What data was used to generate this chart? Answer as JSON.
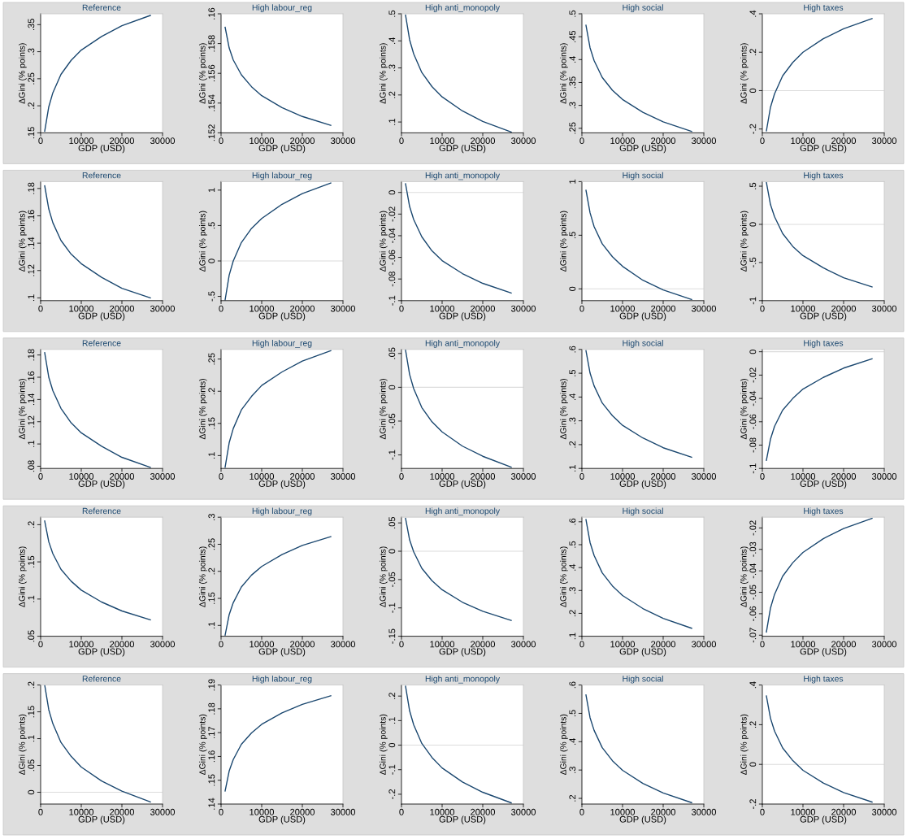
{
  "chart_data": [
    {
      "type": "line",
      "title": "Reference",
      "xlabel": "GDP (USD)",
      "ylabel": "ΔGini (% points)",
      "x": [
        1000,
        2000,
        3000,
        5000,
        7500,
        10000,
        15000,
        20000,
        27000
      ],
      "series": [
        {
          "color": "#1a476f",
          "values": [
            0.153,
            0.198,
            0.224,
            0.258,
            0.284,
            0.303,
            0.328,
            0.348,
            0.367
          ]
        }
      ],
      "xlim": [
        0,
        30000
      ],
      "xticks": [
        0,
        10000,
        20000,
        30000
      ],
      "ylim": [
        0.15,
        0.37
      ],
      "yticks": [
        {
          "value": 0.15,
          "label": ".15"
        },
        {
          "value": 0.2,
          "label": ".2"
        },
        {
          "value": 0.25,
          "label": ".25"
        },
        {
          "value": 0.3,
          "label": ".3"
        },
        {
          "value": 0.35,
          "label": ".35"
        }
      ]
    },
    {
      "type": "line",
      "title": "High labour_reg",
      "xlabel": "GDP (USD)",
      "ylabel": "ΔGini (% points)",
      "x": [
        1000,
        2000,
        3000,
        5000,
        7500,
        10000,
        15000,
        20000,
        27000
      ],
      "series": [
        {
          "color": "#1a476f",
          "values": [
            0.1591,
            0.1577,
            0.1569,
            0.1559,
            0.1551,
            0.1545,
            0.1537,
            0.1531,
            0.1525
          ]
        }
      ],
      "xlim": [
        0,
        30000
      ],
      "xticks": [
        0,
        10000,
        20000,
        30000
      ],
      "ylim": [
        0.152,
        0.16
      ],
      "yticks": [
        {
          "value": 0.152,
          "label": ".152"
        },
        {
          "value": 0.154,
          "label": ".154"
        },
        {
          "value": 0.156,
          "label": ".156"
        },
        {
          "value": 0.158,
          "label": ".158"
        },
        {
          "value": 0.16,
          "label": ".16"
        }
      ]
    },
    {
      "type": "line",
      "title": "High anti_monopoly",
      "xlabel": "GDP (USD)",
      "ylabel": "ΔGini (% points)",
      "x": [
        1000,
        2000,
        3000,
        5000,
        7500,
        10000,
        15000,
        20000,
        27000
      ],
      "series": [
        {
          "color": "#1a476f",
          "values": [
            0.495,
            0.404,
            0.352,
            0.283,
            0.231,
            0.193,
            0.141,
            0.102,
            0.063
          ]
        }
      ],
      "xlim": [
        0,
        30000
      ],
      "xticks": [
        0,
        10000,
        20000,
        30000
      ],
      "ylim": [
        0.06,
        0.5
      ],
      "yticks": [
        {
          "value": 0.1,
          "label": ".1"
        },
        {
          "value": 0.2,
          "label": ".2"
        },
        {
          "value": 0.3,
          "label": ".3"
        },
        {
          "value": 0.4,
          "label": ".4"
        },
        {
          "value": 0.5,
          "label": ".5"
        }
      ]
    },
    {
      "type": "line",
      "title": "High social",
      "xlabel": "GDP (USD)",
      "ylabel": "ΔGini (% points)",
      "x": [
        1000,
        2000,
        3000,
        5000,
        7500,
        10000,
        15000,
        20000,
        27000
      ],
      "series": [
        {
          "color": "#1a476f",
          "values": [
            0.475,
            0.426,
            0.398,
            0.361,
            0.333,
            0.313,
            0.285,
            0.264,
            0.243
          ]
        }
      ],
      "xlim": [
        0,
        30000
      ],
      "xticks": [
        0,
        10000,
        20000,
        30000
      ],
      "ylim": [
        0.24,
        0.5
      ],
      "yticks": [
        {
          "value": 0.25,
          "label": ".25"
        },
        {
          "value": 0.3,
          "label": ".3"
        },
        {
          "value": 0.35,
          "label": ".35"
        },
        {
          "value": 0.4,
          "label": ".4"
        },
        {
          "value": 0.45,
          "label": ".45"
        },
        {
          "value": 0.5,
          "label": ".5"
        }
      ]
    },
    {
      "type": "line",
      "title": "High taxes",
      "xlabel": "GDP (USD)",
      "ylabel": "ΔGini (% points)",
      "x": [
        1000,
        2000,
        3000,
        5000,
        7500,
        10000,
        15000,
        20000,
        27000
      ],
      "series": [
        {
          "color": "#1a476f",
          "values": [
            -0.21,
            -0.087,
            -0.017,
            0.077,
            0.147,
            0.2,
            0.27,
            0.322,
            0.375
          ]
        }
      ],
      "xlim": [
        0,
        30000
      ],
      "xticks": [
        0,
        10000,
        20000,
        30000
      ],
      "ylim": [
        -0.22,
        0.4
      ],
      "yticks": [
        {
          "value": -0.2,
          "label": "-.2"
        },
        0,
        {
          "value": 0.2,
          "label": ".2"
        },
        {
          "value": 0.4,
          "label": ".4"
        }
      ],
      "ref_lines": [
        {
          "axis": "y",
          "value": 0,
          "color": "#dcdcdc"
        }
      ]
    },
    {
      "type": "line",
      "title": "Reference",
      "xlabel": "GDP (USD)",
      "ylabel": "ΔGini (% points)",
      "x": [
        1000,
        2000,
        3000,
        5000,
        7500,
        10000,
        15000,
        20000,
        27000
      ],
      "series": [
        {
          "color": "#1a476f",
          "values": [
            0.182,
            0.165,
            0.155,
            0.142,
            0.132,
            0.125,
            0.115,
            0.107,
            0.1
          ]
        }
      ],
      "xlim": [
        0,
        30000
      ],
      "xticks": [
        0,
        10000,
        20000,
        30000
      ],
      "ylim": [
        0.098,
        0.185
      ],
      "yticks": [
        {
          "value": 0.1,
          "label": ".1"
        },
        {
          "value": 0.12,
          "label": ".12"
        },
        {
          "value": 0.14,
          "label": ".14"
        },
        {
          "value": 0.16,
          "label": ".16"
        },
        {
          "value": 0.18,
          "label": ".18"
        }
      ]
    },
    {
      "type": "line",
      "title": "High labour_reg",
      "xlabel": "GDP (USD)",
      "ylabel": "ΔGini (% points)",
      "x": [
        1000,
        2000,
        3000,
        5000,
        7500,
        10000,
        15000,
        20000,
        27000
      ],
      "series": [
        {
          "color": "#1a476f",
          "values": [
            -0.55,
            -0.2,
            0.0,
            0.26,
            0.46,
            0.6,
            0.8,
            0.95,
            1.1
          ]
        }
      ],
      "xlim": [
        0,
        30000
      ],
      "xticks": [
        0,
        10000,
        20000,
        30000
      ],
      "ylim": [
        -0.56,
        1.12
      ],
      "yticks": [
        {
          "value": -0.5,
          "label": "-.5"
        },
        0,
        {
          "value": 0.5,
          "label": ".5"
        },
        1
      ],
      "ref_lines": [
        {
          "axis": "y",
          "value": 0,
          "color": "#dcdcdc"
        }
      ]
    },
    {
      "type": "line",
      "title": "High anti_monopoly",
      "xlabel": "GDP (USD)",
      "ylabel": "ΔGini (% points)",
      "x": [
        1000,
        2000,
        3000,
        5000,
        7500,
        10000,
        15000,
        20000,
        27000
      ],
      "series": [
        {
          "color": "#1a476f",
          "values": [
            0.008,
            -0.013,
            -0.025,
            -0.041,
            -0.054,
            -0.063,
            -0.075,
            -0.084,
            -0.093
          ]
        }
      ],
      "xlim": [
        0,
        30000
      ],
      "xticks": [
        0,
        10000,
        20000,
        30000
      ],
      "ylim": [
        -0.1,
        0.01
      ],
      "yticks": [
        {
          "value": -0.1,
          "label": "-.1"
        },
        {
          "value": -0.08,
          "label": "-.08"
        },
        {
          "value": -0.06,
          "label": "-.06"
        },
        {
          "value": -0.04,
          "label": "-.04"
        },
        {
          "value": -0.02,
          "label": "-.02"
        },
        0
      ],
      "ref_lines": [
        {
          "axis": "y",
          "value": 0,
          "color": "#dcdcdc"
        }
      ]
    },
    {
      "type": "line",
      "title": "High social",
      "xlabel": "GDP (USD)",
      "ylabel": "ΔGini (% points)",
      "x": [
        1000,
        2000,
        3000,
        5000,
        7500,
        10000,
        15000,
        20000,
        27000
      ],
      "series": [
        {
          "color": "#1a476f",
          "values": [
            0.92,
            0.71,
            0.58,
            0.42,
            0.3,
            0.21,
            0.08,
            -0.01,
            -0.1
          ]
        }
      ],
      "xlim": [
        0,
        30000
      ],
      "xticks": [
        0,
        10000,
        20000,
        30000
      ],
      "ylim": [
        -0.11,
        1.0
      ],
      "yticks": [
        0,
        {
          "value": 0.5,
          "label": ".5"
        },
        1
      ],
      "ref_lines": [
        {
          "axis": "y",
          "value": 0,
          "color": "#dcdcdc"
        }
      ]
    },
    {
      "type": "line",
      "title": "High taxes",
      "xlabel": "GDP (USD)",
      "ylabel": "ΔGini (% points)",
      "x": [
        1000,
        2000,
        3000,
        5000,
        7500,
        10000,
        15000,
        20000,
        27000
      ],
      "series": [
        {
          "color": "#1a476f",
          "values": [
            0.55,
            0.26,
            0.1,
            -0.12,
            -0.29,
            -0.41,
            -0.57,
            -0.7,
            -0.82
          ]
        }
      ],
      "xlim": [
        0,
        30000
      ],
      "xticks": [
        0,
        10000,
        20000,
        30000
      ],
      "ylim": [
        -1.0,
        0.56
      ],
      "yticks": [
        -1,
        {
          "value": -0.5,
          "label": "-.5"
        },
        0,
        {
          "value": 0.5,
          "label": ".5"
        }
      ],
      "ref_lines": [
        {
          "axis": "y",
          "value": 0,
          "color": "#dcdcdc"
        }
      ]
    },
    {
      "type": "line",
      "title": "Reference",
      "xlabel": "GDP (USD)",
      "ylabel": "ΔGini (% points)",
      "x": [
        1000,
        2000,
        3000,
        5000,
        7500,
        10000,
        15000,
        20000,
        27000
      ],
      "series": [
        {
          "color": "#1a476f",
          "values": [
            0.182,
            0.16,
            0.148,
            0.132,
            0.119,
            0.11,
            0.098,
            0.088,
            0.079
          ]
        }
      ],
      "xlim": [
        0,
        30000
      ],
      "xticks": [
        0,
        10000,
        20000,
        30000
      ],
      "ylim": [
        0.078,
        0.185
      ],
      "yticks": [
        {
          "value": 0.08,
          "label": ".08"
        },
        {
          "value": 0.1,
          "label": ".1"
        },
        {
          "value": 0.12,
          "label": ".12"
        },
        {
          "value": 0.14,
          "label": ".14"
        },
        {
          "value": 0.16,
          "label": ".16"
        },
        {
          "value": 0.18,
          "label": ".18"
        }
      ]
    },
    {
      "type": "line",
      "title": "High labour_reg",
      "xlabel": "GDP (USD)",
      "ylabel": "ΔGini (% points)",
      "x": [
        1000,
        2000,
        3000,
        5000,
        7500,
        10000,
        15000,
        20000,
        27000
      ],
      "series": [
        {
          "color": "#1a476f",
          "values": [
            0.082,
            0.12,
            0.142,
            0.171,
            0.192,
            0.209,
            0.23,
            0.247,
            0.263
          ]
        }
      ],
      "xlim": [
        0,
        30000
      ],
      "xticks": [
        0,
        10000,
        20000,
        30000
      ],
      "ylim": [
        0.08,
        0.265
      ],
      "yticks": [
        {
          "value": 0.1,
          "label": ".1"
        },
        {
          "value": 0.15,
          "label": ".15"
        },
        {
          "value": 0.2,
          "label": ".2"
        },
        {
          "value": 0.25,
          "label": ".25"
        }
      ]
    },
    {
      "type": "line",
      "title": "High anti_monopoly",
      "xlabel": "GDP (USD)",
      "ylabel": "ΔGini (% points)",
      "x": [
        1000,
        2000,
        3000,
        5000,
        7500,
        10000,
        15000,
        20000,
        27000
      ],
      "series": [
        {
          "color": "#1a476f",
          "values": [
            0.055,
            0.019,
            -0.002,
            -0.03,
            -0.051,
            -0.066,
            -0.087,
            -0.102,
            -0.118
          ]
        }
      ],
      "xlim": [
        0,
        30000
      ],
      "xticks": [
        0,
        10000,
        20000,
        30000
      ],
      "ylim": [
        -0.12,
        0.056
      ],
      "yticks": [
        {
          "value": -0.1,
          "label": "-.1"
        },
        {
          "value": -0.05,
          "label": "-.05"
        },
        0,
        {
          "value": 0.05,
          "label": ".05"
        }
      ],
      "ref_lines": [
        {
          "axis": "y",
          "value": 0,
          "color": "#dcdcdc"
        }
      ]
    },
    {
      "type": "line",
      "title": "High social",
      "xlabel": "GDP (USD)",
      "ylabel": "ΔGini (% points)",
      "x": [
        1000,
        2000,
        3000,
        5000,
        7500,
        10000,
        15000,
        20000,
        27000
      ],
      "series": [
        {
          "color": "#1a476f",
          "values": [
            0.595,
            0.501,
            0.447,
            0.375,
            0.322,
            0.281,
            0.228,
            0.187,
            0.147
          ]
        }
      ],
      "xlim": [
        0,
        30000
      ],
      "xticks": [
        0,
        10000,
        20000,
        30000
      ],
      "ylim": [
        0.1,
        0.6
      ],
      "yticks": [
        {
          "value": 0.1,
          "label": ".1"
        },
        {
          "value": 0.2,
          "label": ".2"
        },
        {
          "value": 0.3,
          "label": ".3"
        },
        {
          "value": 0.4,
          "label": ".4"
        },
        {
          "value": 0.5,
          "label": ".5"
        },
        {
          "value": 0.6,
          "label": ".6"
        }
      ]
    },
    {
      "type": "line",
      "title": "High taxes",
      "xlabel": "GDP (USD)",
      "ylabel": "ΔGini (% points)",
      "x": [
        1000,
        2000,
        3000,
        5000,
        7500,
        10000,
        15000,
        20000,
        27000
      ],
      "series": [
        {
          "color": "#1a476f",
          "values": [
            -0.093,
            -0.075,
            -0.064,
            -0.05,
            -0.04,
            -0.032,
            -0.022,
            -0.014,
            -0.006
          ]
        }
      ],
      "xlim": [
        0,
        30000
      ],
      "xticks": [
        0,
        10000,
        20000,
        30000
      ],
      "ylim": [
        -0.1,
        0.002
      ],
      "yticks": [
        {
          "value": -0.1,
          "label": "-.1"
        },
        {
          "value": -0.08,
          "label": "-.08"
        },
        {
          "value": -0.06,
          "label": "-.06"
        },
        {
          "value": -0.04,
          "label": "-.04"
        },
        {
          "value": -0.02,
          "label": "-.02"
        },
        0
      ],
      "ref_lines": [
        {
          "axis": "y",
          "value": 0,
          "color": "#dcdcdc"
        }
      ]
    },
    {
      "type": "line",
      "title": "Reference",
      "xlabel": "GDP (USD)",
      "ylabel": "ΔGini (% points)",
      "x": [
        1000,
        2000,
        3000,
        5000,
        7500,
        10000,
        15000,
        20000,
        27000
      ],
      "series": [
        {
          "color": "#1a476f",
          "values": [
            0.205,
            0.177,
            0.161,
            0.14,
            0.124,
            0.112,
            0.096,
            0.084,
            0.072
          ]
        }
      ],
      "xlim": [
        0,
        30000
      ],
      "xticks": [
        0,
        10000,
        20000,
        30000
      ],
      "ylim": [
        0.05,
        0.21
      ],
      "yticks": [
        {
          "value": 0.05,
          "label": ".05"
        },
        {
          "value": 0.1,
          "label": ".1"
        },
        {
          "value": 0.15,
          "label": ".15"
        },
        {
          "value": 0.2,
          "label": ".2"
        }
      ]
    },
    {
      "type": "line",
      "title": "High labour_reg",
      "xlabel": "GDP (USD)",
      "ylabel": "ΔGini (% points)",
      "x": [
        1000,
        2000,
        3000,
        5000,
        7500,
        10000,
        15000,
        20000,
        27000
      ],
      "series": [
        {
          "color": "#1a476f",
          "values": [
            0.082,
            0.12,
            0.142,
            0.171,
            0.193,
            0.209,
            0.231,
            0.248,
            0.264
          ]
        }
      ],
      "xlim": [
        0,
        30000
      ],
      "xticks": [
        0,
        10000,
        20000,
        30000
      ],
      "ylim": [
        0.08,
        0.3
      ],
      "yticks": [
        {
          "value": 0.1,
          "label": ".1"
        },
        {
          "value": 0.15,
          "label": ".15"
        },
        {
          "value": 0.2,
          "label": ".2"
        },
        {
          "value": 0.25,
          "label": ".25"
        },
        {
          "value": 0.3,
          "label": ".3"
        }
      ]
    },
    {
      "type": "line",
      "title": "High anti_monopoly",
      "xlabel": "GDP (USD)",
      "ylabel": "ΔGini (% points)",
      "x": [
        1000,
        2000,
        3000,
        5000,
        7500,
        10000,
        15000,
        20000,
        27000
      ],
      "series": [
        {
          "color": "#1a476f",
          "values": [
            0.058,
            0.02,
            -0.001,
            -0.03,
            -0.052,
            -0.068,
            -0.09,
            -0.106,
            -0.122
          ]
        }
      ],
      "xlim": [
        0,
        30000
      ],
      "xticks": [
        0,
        10000,
        20000,
        30000
      ],
      "ylim": [
        -0.15,
        0.06
      ],
      "yticks": [
        {
          "value": -0.15,
          "label": "-.15"
        },
        {
          "value": -0.1,
          "label": "-.1"
        },
        {
          "value": -0.05,
          "label": "-.05"
        },
        0,
        {
          "value": 0.05,
          "label": ".05"
        }
      ],
      "ref_lines": [
        {
          "axis": "y",
          "value": 0,
          "color": "#dcdcdc"
        }
      ]
    },
    {
      "type": "line",
      "title": "High social",
      "xlabel": "GDP (USD)",
      "ylabel": "ΔGini (% points)",
      "x": [
        1000,
        2000,
        3000,
        5000,
        7500,
        10000,
        15000,
        20000,
        27000
      ],
      "series": [
        {
          "color": "#1a476f",
          "values": [
            0.61,
            0.51,
            0.453,
            0.377,
            0.32,
            0.278,
            0.221,
            0.178,
            0.135
          ]
        }
      ],
      "xlim": [
        0,
        30000
      ],
      "xticks": [
        0,
        10000,
        20000,
        30000
      ],
      "ylim": [
        0.1,
        0.62
      ],
      "yticks": [
        {
          "value": 0.1,
          "label": ".1"
        },
        {
          "value": 0.2,
          "label": ".2"
        },
        {
          "value": 0.3,
          "label": ".3"
        },
        {
          "value": 0.4,
          "label": ".4"
        },
        {
          "value": 0.5,
          "label": ".5"
        },
        {
          "value": 0.6,
          "label": ".6"
        }
      ]
    },
    {
      "type": "line",
      "title": "High taxes",
      "xlabel": "GDP (USD)",
      "ylabel": "ΔGini (% points)",
      "x": [
        1000,
        2000,
        3000,
        5000,
        7500,
        10000,
        15000,
        20000,
        27000
      ],
      "series": [
        {
          "color": "#1a476f",
          "values": [
            -0.0685,
            -0.0574,
            -0.051,
            -0.0425,
            -0.0362,
            -0.0314,
            -0.025,
            -0.0203,
            -0.0155
          ]
        }
      ],
      "xlim": [
        0,
        30000
      ],
      "xticks": [
        0,
        10000,
        20000,
        30000
      ],
      "ylim": [
        -0.0705,
        -0.015
      ],
      "yticks": [
        {
          "value": -0.07,
          "label": "-.07"
        },
        {
          "value": -0.06,
          "label": "-.06"
        },
        {
          "value": -0.05,
          "label": "-.05"
        },
        {
          "value": -0.04,
          "label": "-.04"
        },
        {
          "value": -0.03,
          "label": "-.03"
        },
        {
          "value": -0.02,
          "label": "-.02"
        }
      ]
    },
    {
      "type": "line",
      "title": "Reference",
      "xlabel": "GDP (USD)",
      "ylabel": "ΔGini (% points)",
      "x": [
        1000,
        2000,
        3000,
        5000,
        7500,
        10000,
        15000,
        20000,
        27000
      ],
      "series": [
        {
          "color": "#1a476f",
          "values": [
            0.2,
            0.154,
            0.128,
            0.093,
            0.067,
            0.047,
            0.021,
            0.002,
            -0.018
          ]
        }
      ],
      "xlim": [
        0,
        30000
      ],
      "xticks": [
        0,
        10000,
        20000,
        30000
      ],
      "ylim": [
        -0.022,
        0.2
      ],
      "yticks": [
        0,
        {
          "value": 0.05,
          "label": ".05"
        },
        {
          "value": 0.1,
          "label": ".1"
        },
        {
          "value": 0.15,
          "label": ".15"
        },
        {
          "value": 0.2,
          "label": ".2"
        }
      ],
      "ref_lines": [
        {
          "axis": "y",
          "value": 0,
          "color": "#dcdcdc"
        }
      ]
    },
    {
      "type": "line",
      "title": "High labour_reg",
      "xlabel": "GDP (USD)",
      "ylabel": "ΔGini (% points)",
      "x": [
        1000,
        2000,
        3000,
        5000,
        7500,
        10000,
        15000,
        20000,
        27000
      ],
      "series": [
        {
          "color": "#1a476f",
          "values": [
            0.1455,
            0.1539,
            0.1587,
            0.1651,
            0.1699,
            0.1735,
            0.1783,
            0.1819,
            0.1855
          ]
        }
      ],
      "xlim": [
        0,
        30000
      ],
      "xticks": [
        0,
        10000,
        20000,
        30000
      ],
      "ylim": [
        0.14,
        0.19
      ],
      "yticks": [
        {
          "value": 0.14,
          "label": ".14"
        },
        {
          "value": 0.15,
          "label": ".15"
        },
        {
          "value": 0.16,
          "label": ".16"
        },
        {
          "value": 0.17,
          "label": ".17"
        },
        {
          "value": 0.18,
          "label": ".18"
        },
        {
          "value": 0.19,
          "label": ".19"
        }
      ]
    },
    {
      "type": "line",
      "title": "High anti_monopoly",
      "xlabel": "GDP (USD)",
      "ylabel": "ΔGini (% points)",
      "x": [
        1000,
        2000,
        3000,
        5000,
        7500,
        10000,
        15000,
        20000,
        27000
      ],
      "series": [
        {
          "color": "#1a476f",
          "values": [
            0.24,
            0.14,
            0.083,
            0.007,
            -0.05,
            -0.093,
            -0.15,
            -0.192,
            -0.235
          ]
        }
      ],
      "xlim": [
        0,
        30000
      ],
      "xticks": [
        0,
        10000,
        20000,
        30000
      ],
      "ylim": [
        -0.24,
        0.245
      ],
      "yticks": [
        {
          "value": -0.2,
          "label": "-.2"
        },
        {
          "value": -0.1,
          "label": "-.1"
        },
        0,
        {
          "value": 0.1,
          "label": ".1"
        },
        {
          "value": 0.2,
          "label": ".2"
        }
      ],
      "ref_lines": [
        {
          "axis": "y",
          "value": 0,
          "color": "#dcdcdc"
        }
      ]
    },
    {
      "type": "line",
      "title": "High social",
      "xlabel": "GDP (USD)",
      "ylabel": "ΔGini (% points)",
      "x": [
        1000,
        2000,
        3000,
        5000,
        7500,
        10000,
        15000,
        20000,
        27000
      ],
      "series": [
        {
          "color": "#1a476f",
          "values": [
            0.565,
            0.485,
            0.44,
            0.379,
            0.333,
            0.299,
            0.253,
            0.219,
            0.185
          ]
        }
      ],
      "xlim": [
        0,
        30000
      ],
      "xticks": [
        0,
        10000,
        20000,
        30000
      ],
      "ylim": [
        0.18,
        0.6
      ],
      "yticks": [
        {
          "value": 0.2,
          "label": ".2"
        },
        {
          "value": 0.3,
          "label": ".3"
        },
        {
          "value": 0.4,
          "label": ".4"
        },
        {
          "value": 0.5,
          "label": ".5"
        },
        {
          "value": 0.6,
          "label": ".6"
        }
      ]
    },
    {
      "type": "line",
      "title": "High taxes",
      "xlabel": "GDP (USD)",
      "ylabel": "ΔGini (% points)",
      "x": [
        1000,
        2000,
        3000,
        5000,
        7500,
        10000,
        15000,
        20000,
        27000
      ],
      "series": [
        {
          "color": "#1a476f",
          "values": [
            0.345,
            0.233,
            0.168,
            0.083,
            0.019,
            -0.03,
            -0.094,
            -0.142,
            -0.19
          ]
        }
      ],
      "xlim": [
        0,
        30000
      ],
      "xticks": [
        0,
        10000,
        20000,
        30000
      ],
      "ylim": [
        -0.2,
        0.4
      ],
      "yticks": [
        {
          "value": -0.2,
          "label": "-.2"
        },
        0,
        {
          "value": 0.2,
          "label": ".2"
        },
        {
          "value": 0.4,
          "label": ".4"
        }
      ],
      "ref_lines": [
        {
          "axis": "y",
          "value": 0,
          "color": "#dcdcdc"
        }
      ]
    }
  ]
}
